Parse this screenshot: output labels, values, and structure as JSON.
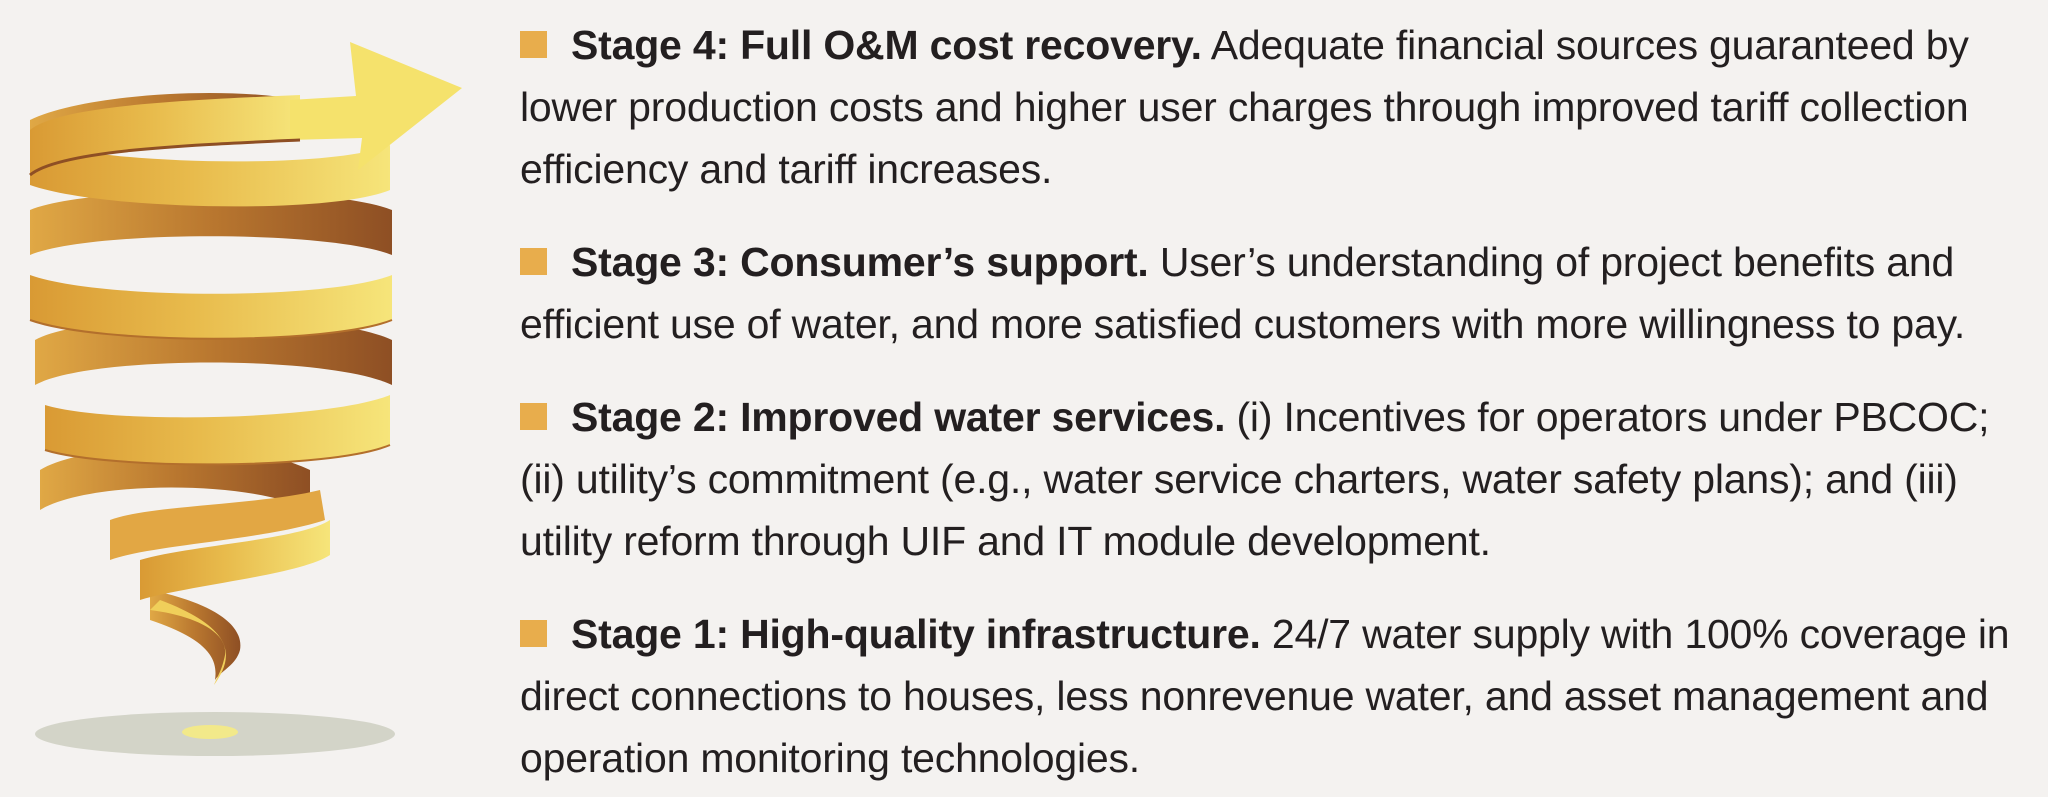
{
  "colors": {
    "background": "#f4f2f0",
    "bullet": "#e8ad4c",
    "text": "#231f20",
    "spiral_light": "#f4de6a",
    "spiral_mid": "#e3b447",
    "spiral_dark": "#9a5a2c",
    "shadow": "#d3d4c8"
  },
  "illustration": {
    "icon": "spiral-arrow-icon"
  },
  "stages": [
    {
      "title": "Stage 4: Full O&M cost recovery.",
      "text": "Adequate financial sources guaranteed by lower production costs and higher user charges through improved tariff collection efficiency and tariff increases."
    },
    {
      "title": "Stage 3: Consumer’s support.",
      "text": "User’s understanding of project benefits and efficient use of water, and more satisfied customers with more willingness to pay."
    },
    {
      "title": "Stage 2: Improved water services.",
      "text": "(i) Incentives for operators under PBCOC; (ii) utility’s commitment (e.g., water service charters, water safety plans); and (iii) utility reform through UIF and IT module development."
    },
    {
      "title": "Stage 1: High-quality infrastructure.",
      "text": "24/7 water supply with 100% coverage in direct connections to houses, less nonrevenue water, and asset management and operation monitoring technologies."
    }
  ]
}
